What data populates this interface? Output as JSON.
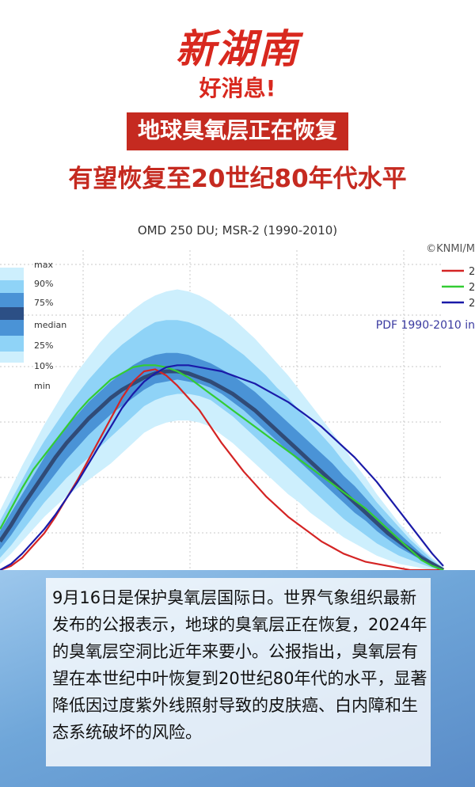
{
  "logo": {
    "text": "新湖南",
    "color": "#d8281e"
  },
  "headline1": {
    "text": "好消息!",
    "color": "#d8281e"
  },
  "banner": {
    "text": "地球臭氧层正在恢复",
    "background": "#c52a20"
  },
  "headline3": {
    "text": "有望恢复至20世纪80年代水平",
    "color": "#c52a20"
  },
  "chart_data": {
    "type": "area",
    "title": "OMD 250 DU; MSR-2 (1990-2010)",
    "copyright": "©KNMI/M",
    "legend_bands": [
      "max",
      "90%",
      "75%",
      "median",
      "25%",
      "10%",
      "min"
    ],
    "legend_series_labels": [
      "2",
      "2",
      "2"
    ],
    "pdf_label": "PDF 1990-2010 in",
    "grid": true,
    "x": [
      0,
      1,
      2,
      3,
      4,
      5,
      6,
      7,
      8,
      9,
      10,
      11,
      12,
      13,
      14,
      15,
      16,
      17,
      18,
      19,
      20,
      21,
      22,
      23,
      24,
      25,
      26,
      27,
      28,
      29,
      30,
      31,
      32,
      33,
      34,
      35,
      36,
      37,
      38,
      39,
      40
    ],
    "bands": {
      "min": [
        3,
        8,
        14,
        20,
        26,
        31,
        36,
        40,
        44,
        48,
        52,
        57,
        62,
        67,
        70,
        72,
        73,
        73,
        72,
        70,
        66,
        62,
        57,
        52,
        47,
        42,
        37,
        33,
        28,
        24,
        20,
        16,
        13,
        10,
        7,
        5,
        3,
        2,
        1,
        0,
        0
      ],
      "p10": [
        6,
        12,
        19,
        26,
        33,
        39,
        45,
        50,
        55,
        60,
        65,
        70,
        75,
        80,
        83,
        85,
        86,
        86,
        85,
        83,
        79,
        75,
        70,
        65,
        60,
        55,
        50,
        45,
        40,
        35,
        30,
        25,
        21,
        17,
        13,
        10,
        7,
        5,
        3,
        1,
        0
      ],
      "p25": [
        10,
        17,
        25,
        33,
        40,
        47,
        54,
        60,
        66,
        71,
        76,
        80,
        84,
        88,
        91,
        92,
        93,
        92,
        91,
        89,
        86,
        82,
        78,
        73,
        68,
        63,
        58,
        53,
        48,
        43,
        38,
        33,
        28,
        24,
        19,
        15,
        11,
        8,
        5,
        2,
        0
      ],
      "median": [
        14,
        22,
        31,
        39,
        47,
        55,
        62,
        68,
        74,
        79,
        84,
        88,
        91,
        94,
        96,
        97,
        97,
        96,
        94,
        92,
        89,
        86,
        82,
        78,
        73,
        68,
        63,
        58,
        53,
        48,
        43,
        38,
        33,
        28,
        23,
        18,
        14,
        10,
        6,
        3,
        0
      ],
      "p75": [
        19,
        28,
        37,
        46,
        55,
        63,
        70,
        76,
        82,
        87,
        92,
        96,
        100,
        103,
        105,
        106,
        106,
        105,
        103,
        101,
        98,
        95,
        91,
        87,
        82,
        77,
        72,
        67,
        62,
        57,
        52,
        46,
        41,
        35,
        29,
        23,
        18,
        13,
        8,
        4,
        1
      ],
      "p90": [
        24,
        34,
        44,
        54,
        63,
        71,
        79,
        86,
        93,
        99,
        105,
        110,
        114,
        118,
        121,
        122,
        122,
        121,
        119,
        116,
        113,
        109,
        105,
        100,
        95,
        89,
        84,
        78,
        72,
        66,
        60,
        53,
        47,
        40,
        33,
        27,
        21,
        15,
        10,
        5,
        1
      ],
      "max": [
        29,
        40,
        51,
        61,
        71,
        80,
        89,
        97,
        104,
        111,
        117,
        122,
        127,
        131,
        134,
        136,
        137,
        136,
        134,
        131,
        127,
        123,
        118,
        113,
        107,
        101,
        95,
        88,
        81,
        74,
        67,
        60,
        52,
        45,
        37,
        30,
        23,
        17,
        11,
        6,
        2
      ]
    },
    "series": [
      {
        "legend_label": "2",
        "color": "#d42424",
        "values": [
          0,
          2,
          6,
          12,
          18,
          26,
          35,
          44,
          54,
          64,
          74,
          84,
          92,
          97,
          98,
          95,
          90,
          84,
          78,
          70,
          62,
          55,
          48,
          42,
          36,
          31,
          26,
          22,
          18,
          14,
          11,
          8,
          6,
          4,
          3,
          2,
          1,
          0,
          0,
          0,
          0
        ]
      },
      {
        "legend_label": "2",
        "color": "#33cc33",
        "values": [
          20,
          30,
          40,
          49,
          56,
          63,
          70,
          77,
          83,
          88,
          93,
          96,
          99,
          100,
          100,
          99,
          97,
          94,
          90,
          86,
          82,
          78,
          74,
          70,
          66,
          62,
          58,
          54,
          50,
          46,
          42,
          38,
          34,
          30,
          25,
          20,
          15,
          10,
          5,
          2,
          0
        ]
      },
      {
        "legend_label": "2",
        "color": "#1a1aa8",
        "values": [
          0,
          3,
          8,
          14,
          20,
          27,
          35,
          43,
          52,
          61,
          70,
          79,
          86,
          92,
          96,
          99,
          100,
          100,
          99,
          98,
          97,
          95,
          93,
          91,
          88,
          85,
          82,
          78,
          74,
          70,
          65,
          60,
          55,
          49,
          43,
          36,
          29,
          22,
          15,
          8,
          2
        ]
      }
    ]
  },
  "body": {
    "text": "9月16日是保护臭氧层国际日。世界气象组织最新发布的公报表示，地球的臭氧层正在恢复，2024年的臭氧层空洞比近年来要小。公报指出，臭氧层有望在本世纪中叶恢复到20世纪80年代的水平，显著降低因过度紫外线照射导致的皮肤癌、白内障和生态系统破坏的风险。"
  }
}
